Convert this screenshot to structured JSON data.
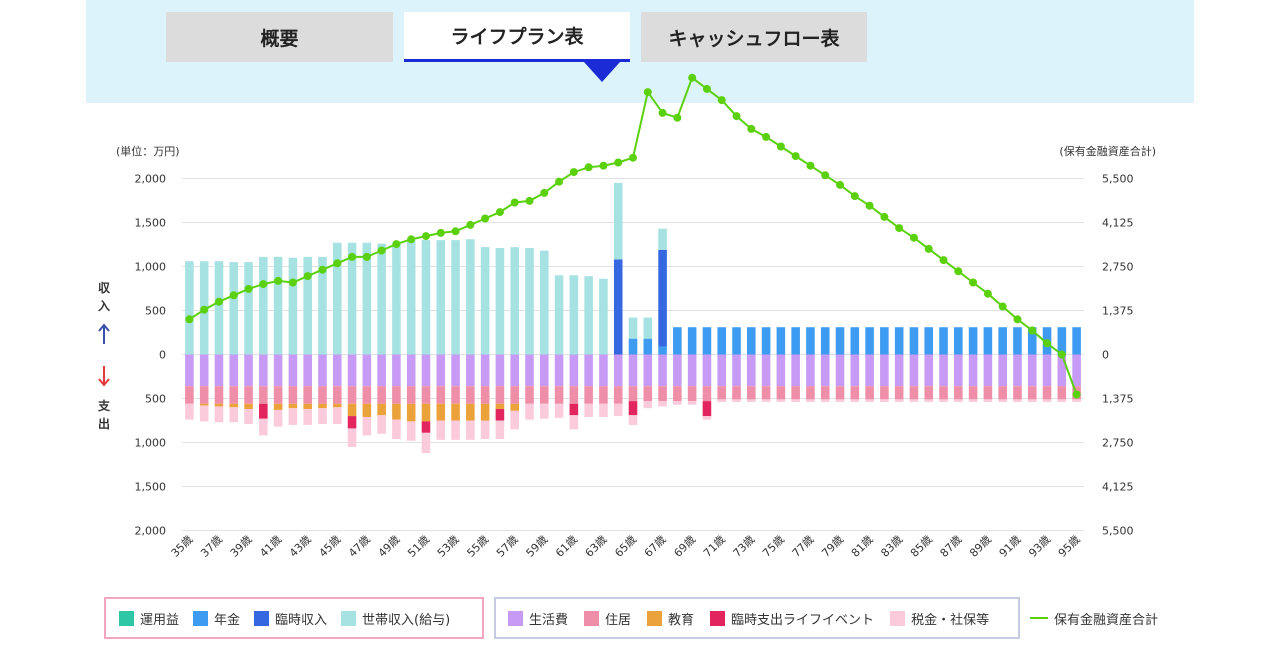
{
  "tabs": [
    {
      "label": "概要",
      "active": false
    },
    {
      "label": "ライフプラン表",
      "active": true
    },
    {
      "label": "キャッシュフロー表",
      "active": false
    }
  ],
  "side_labels": {
    "income": "収入",
    "expense": "支出"
  },
  "colors": {
    "unyoueki": "#2ec7a6",
    "nenkin": "#3d9bf2",
    "rinji_income": "#3568e0",
    "setai": "#a6e2e2",
    "seikatsu": "#c69af5",
    "jukyo": "#ee8ea8",
    "kyouiku": "#eba23a",
    "rinji_expense": "#e2245f",
    "zei": "#fbcadb",
    "assets": "#5bd10e"
  },
  "chart_data": {
    "type": "bar",
    "unit_label": "(単位：万円)",
    "y2_label": "(保有金融資産合計)",
    "ylim": [
      -2000,
      2000
    ],
    "y_ticks": [
      2000,
      1500,
      1000,
      500,
      0,
      -500,
      -1000,
      -1500,
      -2000
    ],
    "y_tick_labels": [
      "2,000",
      "1,500",
      "1,000",
      "500",
      "0",
      "500",
      "1,000",
      "1,500",
      "2,000"
    ],
    "y2lim": [
      -5500,
      5500
    ],
    "y2_tick_labels": [
      "5,500",
      "4,125",
      "2,750",
      "1,375",
      "0",
      "1,375",
      "2,750",
      "4,125",
      "5,500"
    ],
    "grid": true,
    "categories": [
      "35歳",
      "36歳",
      "37歳",
      "38歳",
      "39歳",
      "40歳",
      "41歳",
      "42歳",
      "43歳",
      "44歳",
      "45歳",
      "46歳",
      "47歳",
      "48歳",
      "49歳",
      "50歳",
      "51歳",
      "52歳",
      "53歳",
      "54歳",
      "55歳",
      "56歳",
      "57歳",
      "58歳",
      "59歳",
      "60歳",
      "61歳",
      "62歳",
      "63歳",
      "64歳",
      "65歳",
      "66歳",
      "67歳",
      "68歳",
      "69歳",
      "70歳",
      "71歳",
      "72歳",
      "73歳",
      "74歳",
      "75歳",
      "76歳",
      "77歳",
      "78歳",
      "79歳",
      "80歳",
      "81歳",
      "82歳",
      "83歳",
      "84歳",
      "85歳",
      "86歳",
      "87歳",
      "88歳",
      "89歳",
      "90歳",
      "91歳",
      "92歳",
      "93歳",
      "94歳",
      "95歳"
    ],
    "x_tick_labels": [
      "35歳",
      "37歳",
      "39歳",
      "41歳",
      "43歳",
      "45歳",
      "47歳",
      "49歳",
      "51歳",
      "53歳",
      "55歳",
      "57歳",
      "59歳",
      "61歳",
      "63歳",
      "65歳",
      "67歳",
      "69歳",
      "71歳",
      "73歳",
      "75歳",
      "77歳",
      "79歳",
      "81歳",
      "83歳",
      "85歳",
      "87歳",
      "89歳",
      "91歳",
      "93歳",
      "95歳"
    ],
    "income_series": [
      {
        "name": "運用益",
        "key": "unyoueki",
        "values": [
          0,
          0,
          0,
          0,
          0,
          0,
          0,
          0,
          0,
          0,
          0,
          0,
          0,
          0,
          0,
          0,
          0,
          0,
          0,
          0,
          0,
          0,
          0,
          0,
          0,
          0,
          0,
          0,
          0,
          0,
          0,
          0,
          0,
          0,
          0,
          0,
          0,
          0,
          0,
          0,
          0,
          0,
          0,
          0,
          0,
          0,
          0,
          0,
          0,
          0,
          0,
          0,
          0,
          0,
          0,
          0,
          0,
          0,
          0,
          0,
          0
        ]
      },
      {
        "name": "年金",
        "key": "nenkin",
        "values": [
          0,
          0,
          0,
          0,
          0,
          0,
          0,
          0,
          0,
          0,
          0,
          0,
          0,
          0,
          0,
          0,
          0,
          0,
          0,
          0,
          0,
          0,
          0,
          0,
          0,
          0,
          0,
          0,
          0,
          0,
          180,
          180,
          90,
          310,
          310,
          310,
          310,
          310,
          310,
          310,
          310,
          310,
          310,
          310,
          310,
          310,
          310,
          310,
          310,
          310,
          310,
          310,
          310,
          310,
          310,
          310,
          310,
          310,
          310,
          310,
          310
        ]
      },
      {
        "name": "臨時収入",
        "key": "rinji_income",
        "values": [
          0,
          0,
          0,
          0,
          0,
          0,
          0,
          0,
          0,
          0,
          0,
          0,
          0,
          0,
          0,
          0,
          0,
          0,
          0,
          0,
          0,
          0,
          0,
          0,
          0,
          0,
          0,
          0,
          0,
          1080,
          0,
          0,
          1100,
          0,
          0,
          0,
          0,
          0,
          0,
          0,
          0,
          0,
          0,
          0,
          0,
          0,
          0,
          0,
          0,
          0,
          0,
          0,
          0,
          0,
          0,
          0,
          0,
          0,
          0,
          0,
          0
        ]
      },
      {
        "name": "世帯収入(給与)",
        "key": "setai",
        "values": [
          1060,
          1060,
          1060,
          1050,
          1050,
          1110,
          1110,
          1100,
          1110,
          1110,
          1270,
          1270,
          1270,
          1260,
          1260,
          1300,
          1300,
          1300,
          1300,
          1310,
          1220,
          1210,
          1220,
          1210,
          1180,
          900,
          900,
          890,
          860,
          870,
          240,
          240,
          240,
          0,
          0,
          0,
          0,
          0,
          0,
          0,
          0,
          0,
          0,
          0,
          0,
          0,
          0,
          0,
          0,
          0,
          0,
          0,
          0,
          0,
          0,
          0,
          0,
          0,
          0,
          0,
          0
        ]
      }
    ],
    "expense_series": [
      {
        "name": "生活費",
        "key": "seikatsu",
        "values": [
          360,
          360,
          360,
          360,
          360,
          360,
          360,
          360,
          360,
          360,
          360,
          360,
          360,
          360,
          360,
          360,
          360,
          360,
          360,
          360,
          360,
          360,
          360,
          360,
          360,
          360,
          360,
          360,
          360,
          360,
          360,
          360,
          360,
          360,
          360,
          360,
          360,
          360,
          360,
          360,
          360,
          360,
          360,
          360,
          360,
          360,
          360,
          360,
          360,
          360,
          360,
          360,
          360,
          360,
          360,
          360,
          360,
          360,
          360,
          360,
          360
        ]
      },
      {
        "name": "住居",
        "key": "jukyo",
        "values": [
          200,
          200,
          200,
          200,
          200,
          200,
          200,
          200,
          200,
          200,
          200,
          200,
          200,
          200,
          200,
          200,
          200,
          200,
          200,
          200,
          200,
          200,
          200,
          200,
          200,
          200,
          200,
          200,
          200,
          200,
          170,
          170,
          170,
          170,
          170,
          170,
          150,
          150,
          150,
          150,
          150,
          150,
          150,
          150,
          150,
          150,
          150,
          150,
          150,
          150,
          150,
          150,
          150,
          150,
          150,
          150,
          150,
          150,
          150,
          150,
          150
        ]
      },
      {
        "name": "教育",
        "key": "kyouiku",
        "values": [
          0,
          20,
          30,
          40,
          60,
          0,
          70,
          50,
          60,
          50,
          40,
          140,
          150,
          130,
          180,
          200,
          200,
          190,
          190,
          190,
          190,
          60,
          80,
          0,
          0,
          0,
          0,
          0,
          0,
          0,
          0,
          0,
          0,
          0,
          0,
          0,
          0,
          0,
          0,
          0,
          0,
          0,
          0,
          0,
          0,
          0,
          0,
          0,
          0,
          0,
          0,
          0,
          0,
          0,
          0,
          0,
          0,
          0,
          0,
          0,
          0
        ]
      },
      {
        "name": "臨時支出ライフイベント",
        "key": "rinji_expense",
        "values": [
          0,
          0,
          0,
          0,
          0,
          170,
          0,
          0,
          0,
          0,
          0,
          140,
          0,
          0,
          0,
          0,
          130,
          0,
          0,
          0,
          0,
          130,
          0,
          0,
          0,
          0,
          130,
          0,
          0,
          0,
          160,
          0,
          0,
          0,
          0,
          170,
          0,
          0,
          0,
          0,
          0,
          0,
          0,
          0,
          0,
          0,
          0,
          0,
          0,
          0,
          0,
          0,
          0,
          0,
          0,
          0,
          0,
          0,
          0,
          0,
          0
        ]
      },
      {
        "name": "税金・社保等",
        "key": "zei",
        "values": [
          180,
          180,
          180,
          170,
          170,
          190,
          190,
          190,
          180,
          180,
          190,
          210,
          210,
          210,
          220,
          220,
          230,
          220,
          220,
          220,
          210,
          210,
          210,
          180,
          170,
          160,
          160,
          150,
          150,
          140,
          110,
          80,
          60,
          40,
          40,
          40,
          30,
          30,
          30,
          30,
          30,
          30,
          30,
          30,
          30,
          30,
          30,
          30,
          30,
          30,
          30,
          30,
          30,
          30,
          30,
          30,
          30,
          30,
          30,
          30,
          30
        ]
      }
    ],
    "asset_series": {
      "name": "保有金融資産合計",
      "key": "assets",
      "values": [
        1100,
        1400,
        1650,
        1850,
        2050,
        2200,
        2300,
        2250,
        2450,
        2650,
        2850,
        3050,
        3050,
        3250,
        3450,
        3600,
        3700,
        3800,
        3850,
        4050,
        4250,
        4450,
        4750,
        4800,
        5050,
        5400,
        5700,
        5850,
        5900,
        6000,
        6150,
        8200,
        7550,
        7400,
        8650,
        8300,
        7950,
        7450,
        7050,
        6800,
        6500,
        6200,
        5900,
        5600,
        5300,
        4950,
        4650,
        4300,
        3950,
        3650,
        3300,
        2950,
        2600,
        2250,
        1900,
        1500,
        1100,
        750,
        350,
        0,
        -1250
      ]
    }
  },
  "legend": {
    "income": [
      {
        "label": "運用益",
        "key": "unyoueki"
      },
      {
        "label": "年金",
        "key": "nenkin"
      },
      {
        "label": "臨時収入",
        "key": "rinji_income"
      },
      {
        "label": "世帯収入(給与)",
        "key": "setai"
      }
    ],
    "expense": [
      {
        "label": "生活費",
        "key": "seikatsu"
      },
      {
        "label": "住居",
        "key": "jukyo"
      },
      {
        "label": "教育",
        "key": "kyouiku"
      },
      {
        "label": "臨時支出ライフイベント",
        "key": "rinji_expense"
      },
      {
        "label": "税金・社保等",
        "key": "zei"
      }
    ],
    "line": {
      "label": "保有金融資産合計",
      "key": "assets"
    }
  }
}
